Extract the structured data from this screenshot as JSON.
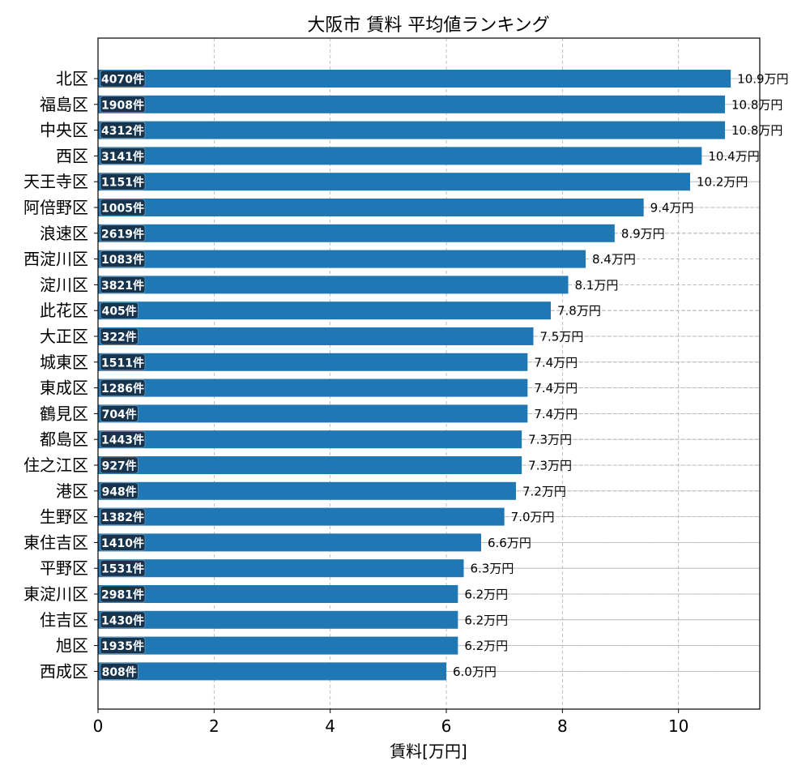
{
  "chart_data": {
    "type": "bar",
    "orientation": "horizontal",
    "title": "大阪市 賃料 平均値ランキング",
    "xlabel": "賃料[万円]",
    "ylabel": "",
    "xlim": [
      0,
      11.4
    ],
    "xticks": [
      0,
      2,
      4,
      6,
      8,
      10
    ],
    "grid": true,
    "bar_color": "#1f77b4",
    "badge_color": "#17344f",
    "value_suffix": "万円",
    "count_suffix": "件",
    "categories": [
      "北区",
      "福島区",
      "中央区",
      "西区",
      "天王寺区",
      "阿倍野区",
      "浪速区",
      "西淀川区",
      "淀川区",
      "此花区",
      "大正区",
      "城東区",
      "東成区",
      "鶴見区",
      "都島区",
      "住之江区",
      "港区",
      "生野区",
      "東住吉区",
      "平野区",
      "東淀川区",
      "住吉区",
      "旭区",
      "西成区"
    ],
    "values": [
      10.9,
      10.8,
      10.8,
      10.4,
      10.2,
      9.4,
      8.9,
      8.4,
      8.1,
      7.8,
      7.5,
      7.4,
      7.4,
      7.4,
      7.3,
      7.3,
      7.2,
      7.0,
      6.6,
      6.3,
      6.2,
      6.2,
      6.2,
      6.0
    ],
    "counts": [
      4070,
      1908,
      4312,
      3141,
      1151,
      1005,
      2619,
      1083,
      3821,
      405,
      322,
      1511,
      1286,
      704,
      1443,
      927,
      948,
      1382,
      1410,
      1531,
      2981,
      1430,
      1935,
      808
    ]
  }
}
